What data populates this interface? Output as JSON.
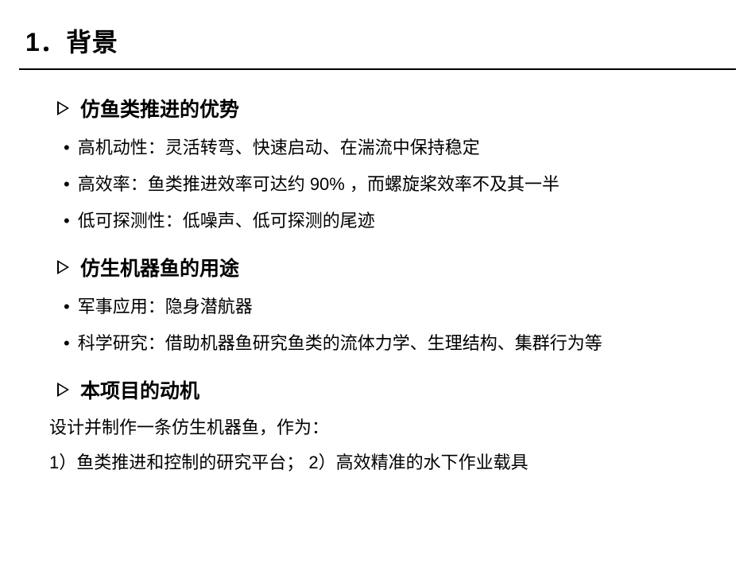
{
  "title": "1．背景",
  "sections": [
    {
      "heading": "仿鱼类推进的优势",
      "bullets": [
        "高机动性：灵活转弯、快速启动、在湍流中保持稳定",
        "高效率：鱼类推进效率可达约 90% ，而螺旋桨效率不及其一半",
        "低可探测性：低噪声、低可探测的尾迹"
      ]
    },
    {
      "heading": "仿生机器鱼的用途",
      "bullets": [
        "军事应用：隐身潜航器",
        "科学研究：借助机器鱼研究鱼类的流体力学、生理结构、集群行为等"
      ]
    },
    {
      "heading": "本项目的动机",
      "lines": [
        "设计并制作一条仿生机器鱼，作为：",
        "1）鱼类推进和控制的研究平台； 2）高效精准的水下作业载具"
      ]
    }
  ],
  "style": {
    "bg": "#ffffff",
    "fg": "#000000",
    "title_fontsize": 32,
    "section_title_fontsize": 25,
    "body_fontsize": 22,
    "rule_width": 2
  }
}
